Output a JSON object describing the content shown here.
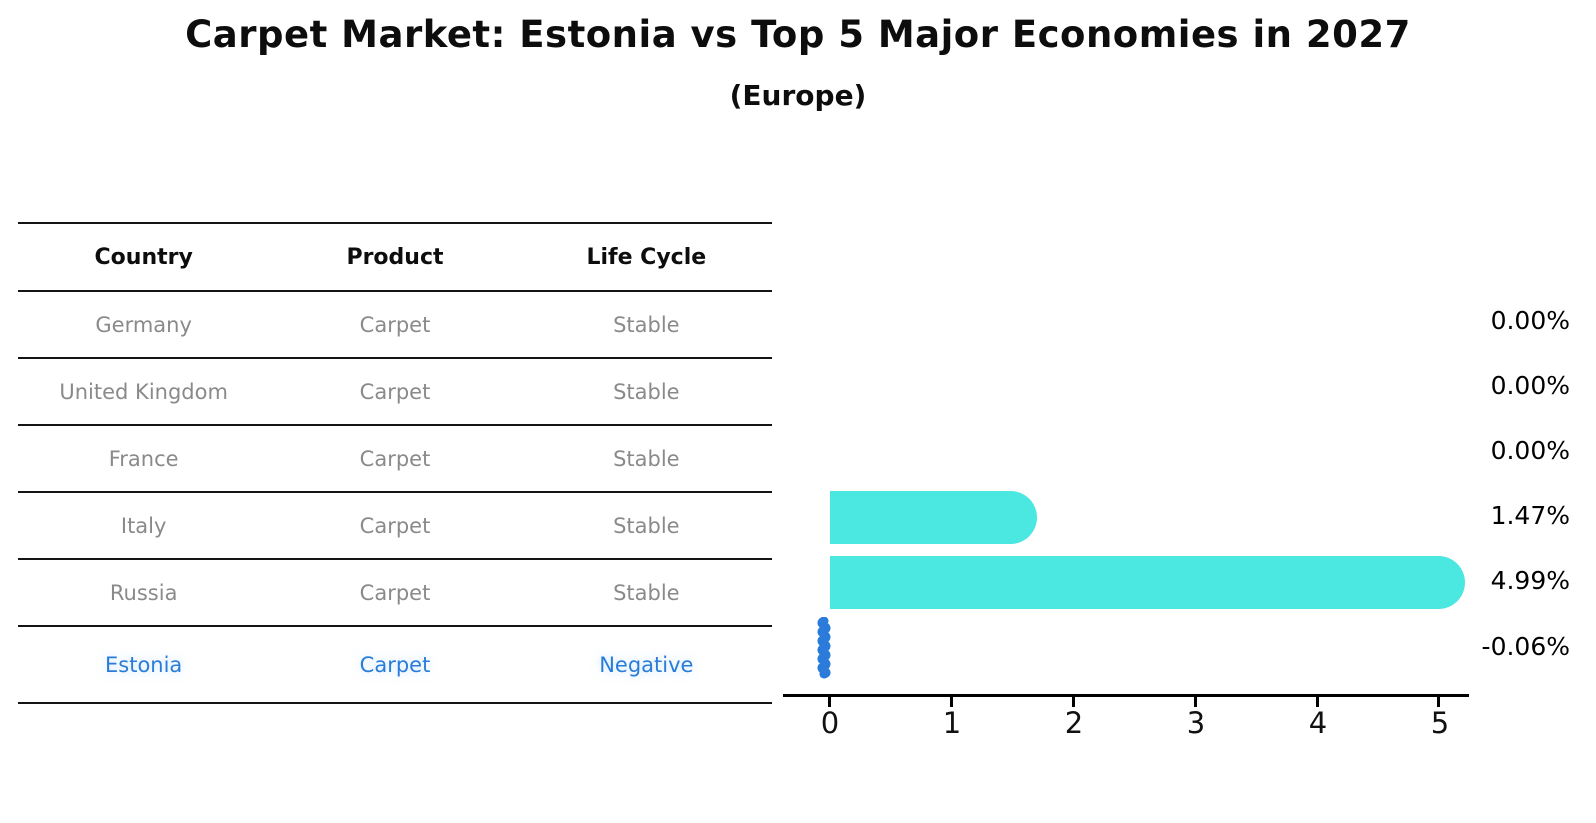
{
  "title": "Carpet Market: Estonia vs Top 5 Major Economies in 2027",
  "subtitle": "(Europe)",
  "table": {
    "headers": [
      "Country",
      "Product",
      "Life Cycle"
    ],
    "rows": [
      {
        "country": "Germany",
        "product": "Carpet",
        "life_cycle": "Stable",
        "highlight": false
      },
      {
        "country": "United Kingdom",
        "product": "Carpet",
        "life_cycle": "Stable",
        "highlight": false
      },
      {
        "country": "France",
        "product": "Carpet",
        "life_cycle": "Stable",
        "highlight": false
      },
      {
        "country": "Italy",
        "product": "Carpet",
        "life_cycle": "Stable",
        "highlight": false
      },
      {
        "country": "Russia",
        "product": "Carpet",
        "life_cycle": "Stable",
        "highlight": false
      },
      {
        "country": "Estonia",
        "product": "Carpet",
        "life_cycle": "Negative",
        "highlight": true
      }
    ]
  },
  "chart_data": {
    "type": "bar",
    "orientation": "horizontal",
    "title": "Carpet Market: Estonia vs Top 5 Major Economies in 2027",
    "subtitle": "(Europe)",
    "categories": [
      "Germany",
      "United Kingdom",
      "France",
      "Italy",
      "Russia",
      "Estonia"
    ],
    "values": [
      0.0,
      0.0,
      0.0,
      1.47,
      4.99,
      -0.06
    ],
    "value_labels": [
      "0.00%",
      "0.00%",
      "0.00%",
      "1.47%",
      "4.99%",
      "-0.06%"
    ],
    "unit": "%",
    "xlim": [
      0,
      5
    ],
    "xticks": [
      "0",
      "1",
      "2",
      "3",
      "4",
      "5"
    ],
    "grid": false,
    "legend": "none",
    "bar_color": "#4AE8E0",
    "negative_bar_color": "#2B7BDB",
    "highlight_text_color": "#2A7CD9"
  }
}
